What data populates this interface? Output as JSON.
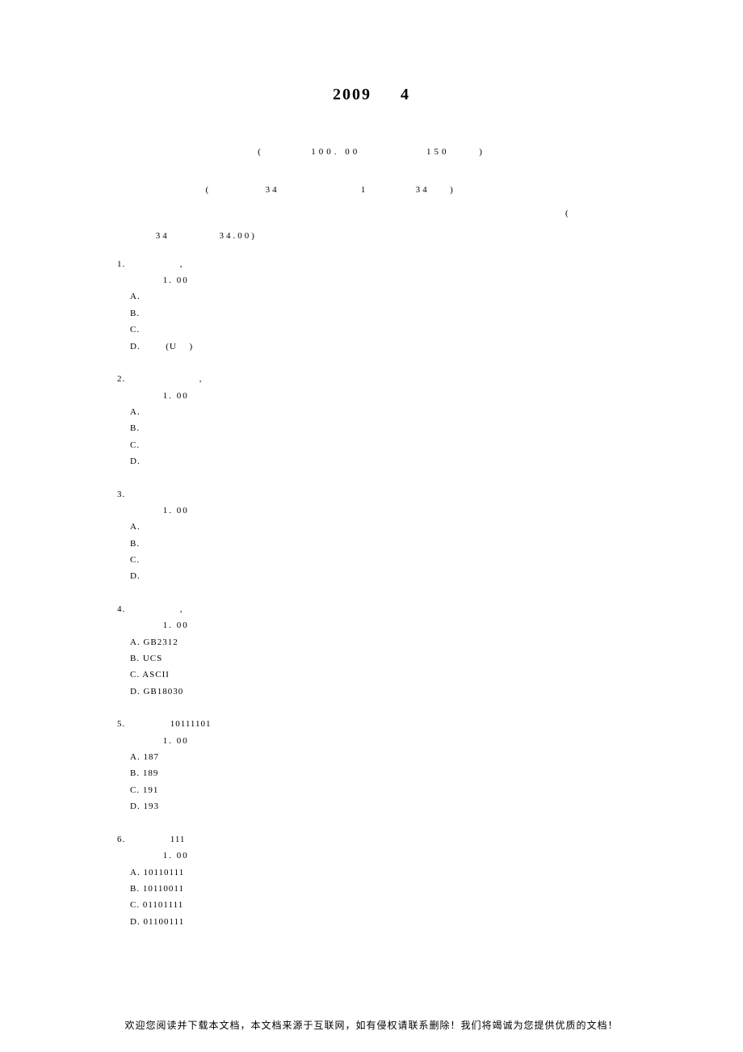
{
  "title": "2009 　 4 　　　　　　　　　　　",
  "subtitle": "( 　　　  100. 00　　　　　    150 　　)",
  "section_header_line1": "　　  　　　　　  ( 　　　　  34 　　　  　　　  1 　　  　 34 　 ) 　　　　　　　　　　　　　",
  "section_header_line2": "　　　　　　　　　　　               　　　　　　　　　　　　　　　        　　　  　　　　　　　　　       ( 　",
  "section_header_line3": "　　　  34　　　　    34.00)",
  "questions": [
    {
      "num": "1.",
      "text": "　　　　　    , 　　　　　　　　　　　",
      "score": "　　　　    1. 00　",
      "options": [
        {
          "letter": "A.",
          "text": "　　",
          "correct": true
        },
        {
          "letter": "B.",
          "text": "　　",
          "correct": false
        },
        {
          "letter": "C.",
          "text": "　　",
          "correct": false
        },
        {
          "letter": "D.",
          "text": "　　  (U 　)",
          "correct": false
        }
      ],
      "analysis": "　　　"
    },
    {
      "num": "2.",
      "text": "　　　　　　　      , 　　　　　　　　　",
      "score": "　　　　    1. 00　",
      "options": [
        {
          "letter": "A.",
          "text": "　　",
          "correct": false
        },
        {
          "letter": "B.",
          "text": "　　",
          "correct": false
        },
        {
          "letter": "C.",
          "text": "　　　　　",
          "correct": true
        },
        {
          "letter": "D.",
          "text": "　　",
          "correct": false
        }
      ],
      "analysis": "　　　"
    },
    {
      "num": "3.",
      "text": "　　　　　　　　　　　　",
      "score": "　　　　    1. 00　",
      "options": [
        {
          "letter": "A.",
          "text": "　　　　",
          "correct": false
        },
        {
          "letter": "B.",
          "text": "　　　　　　　　",
          "correct": true
        },
        {
          "letter": "C.",
          "text": "　　　　",
          "correct": false
        },
        {
          "letter": "D.",
          "text": "　　　　",
          "correct": false
        }
      ],
      "analysis": "　　　"
    },
    {
      "num": "4.",
      "text": "　　　　　    , 　　　　　　　　　　",
      "score": "　　　　    1. 00　",
      "options": [
        {
          "letter": "A.",
          "text": "GB2312",
          "correct": false
        },
        {
          "letter": "B.",
          "text": "UCS",
          "correct": false
        },
        {
          "letter": "C.",
          "text": "ASCII",
          "correct": true
        },
        {
          "letter": "D.",
          "text": "GB18030",
          "correct": false
        }
      ],
      "analysis": "　　　"
    },
    {
      "num": "5.",
      "text": "　　　　    10111101 　　　　　　　",
      "score": "　　　　    1. 00　",
      "options": [
        {
          "letter": "A.",
          "text": "187",
          "correct": false
        },
        {
          "letter": "B.",
          "text": "189",
          "correct": true
        },
        {
          "letter": "C.",
          "text": "191",
          "correct": false
        },
        {
          "letter": "D.",
          "text": "193",
          "correct": false
        }
      ],
      "analysis": "　　　"
    },
    {
      "num": "6.",
      "text": "　　　　    111 　　　　　　　",
      "score": "　　　　    1. 00　",
      "options": [
        {
          "letter": "A.",
          "text": "10110111",
          "correct": false
        },
        {
          "letter": "B.",
          "text": "10110011",
          "correct": false
        },
        {
          "letter": "C.",
          "text": "01101111",
          "correct": true
        },
        {
          "letter": "D.",
          "text": "01100111",
          "correct": false
        }
      ],
      "analysis": ""
    }
  ],
  "footer": "欢迎您阅读并下载本文档，本文档来源于互联网，如有侵权请联系删除！我们将竭诚为您提供优质的文档！",
  "colors": {
    "text": "#000000",
    "correct_mark": "#ed1c24",
    "background": "#ffffff"
  }
}
